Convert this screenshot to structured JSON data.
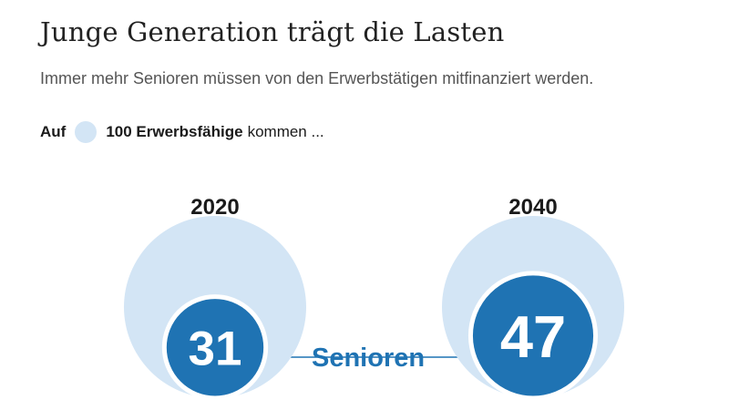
{
  "title": "Junge Generation trägt die Lasten",
  "subtitle": "Immer mehr Senioren müssen von den Erwerbstätigen mitfinanziert werden.",
  "legend": {
    "prefix": "Auf",
    "base_label": "100 Erwerbsfähige",
    "suffix": "kommen ..."
  },
  "center_label": "Senioren",
  "colors": {
    "base_circle": "#d3e5f5",
    "senior_circle": "#1f73b3",
    "label_text": "#1f73b3",
    "value_text": "#ffffff"
  },
  "chart_data": {
    "type": "proportional-area",
    "base": 100,
    "categories": [
      "2020",
      "2040"
    ],
    "series": [
      {
        "name": "Senioren",
        "values": [
          31,
          47
        ]
      }
    ],
    "value_labels": [
      "31",
      "47"
    ],
    "center_label": "Senioren"
  }
}
